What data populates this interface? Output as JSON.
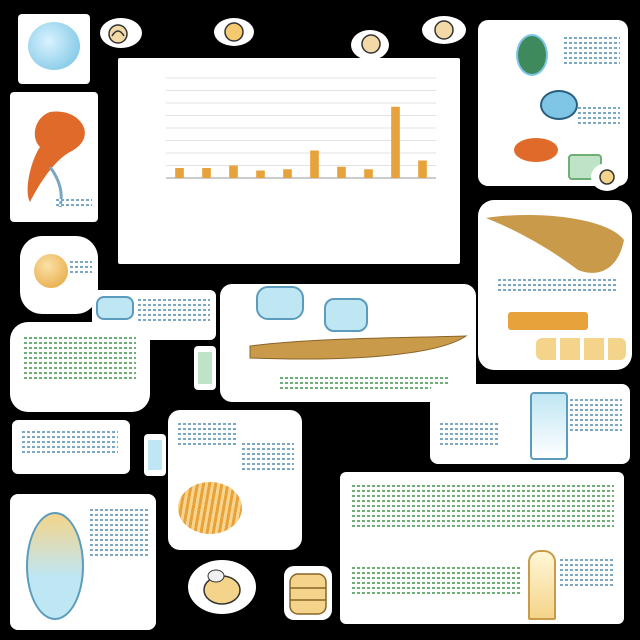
{
  "chart_data": {
    "type": "bar",
    "title": "",
    "xlabel": "",
    "ylabel": "",
    "ylim": [
      0,
      8
    ],
    "grid": true,
    "series": [
      {
        "values": [
          0.8,
          0.8,
          1.0,
          0.6,
          0.7,
          2.2,
          0.9,
          0.7,
          5.7,
          1.4
        ]
      }
    ],
    "bar_color": "#e8a23c"
  },
  "palette": {
    "background": "#000000",
    "card": "#ffffff",
    "orange": "#e8a23c",
    "blue": "#7fc6e6",
    "green": "#6fae74",
    "tan": "#c89a4a"
  },
  "icons": [
    "gear-sticker-icon",
    "snail-sticker-icon",
    "shell-sticker-icon",
    "seed-sticker-icon",
    "bee-sticker-icon",
    "cylinder-sticker-icon"
  ]
}
